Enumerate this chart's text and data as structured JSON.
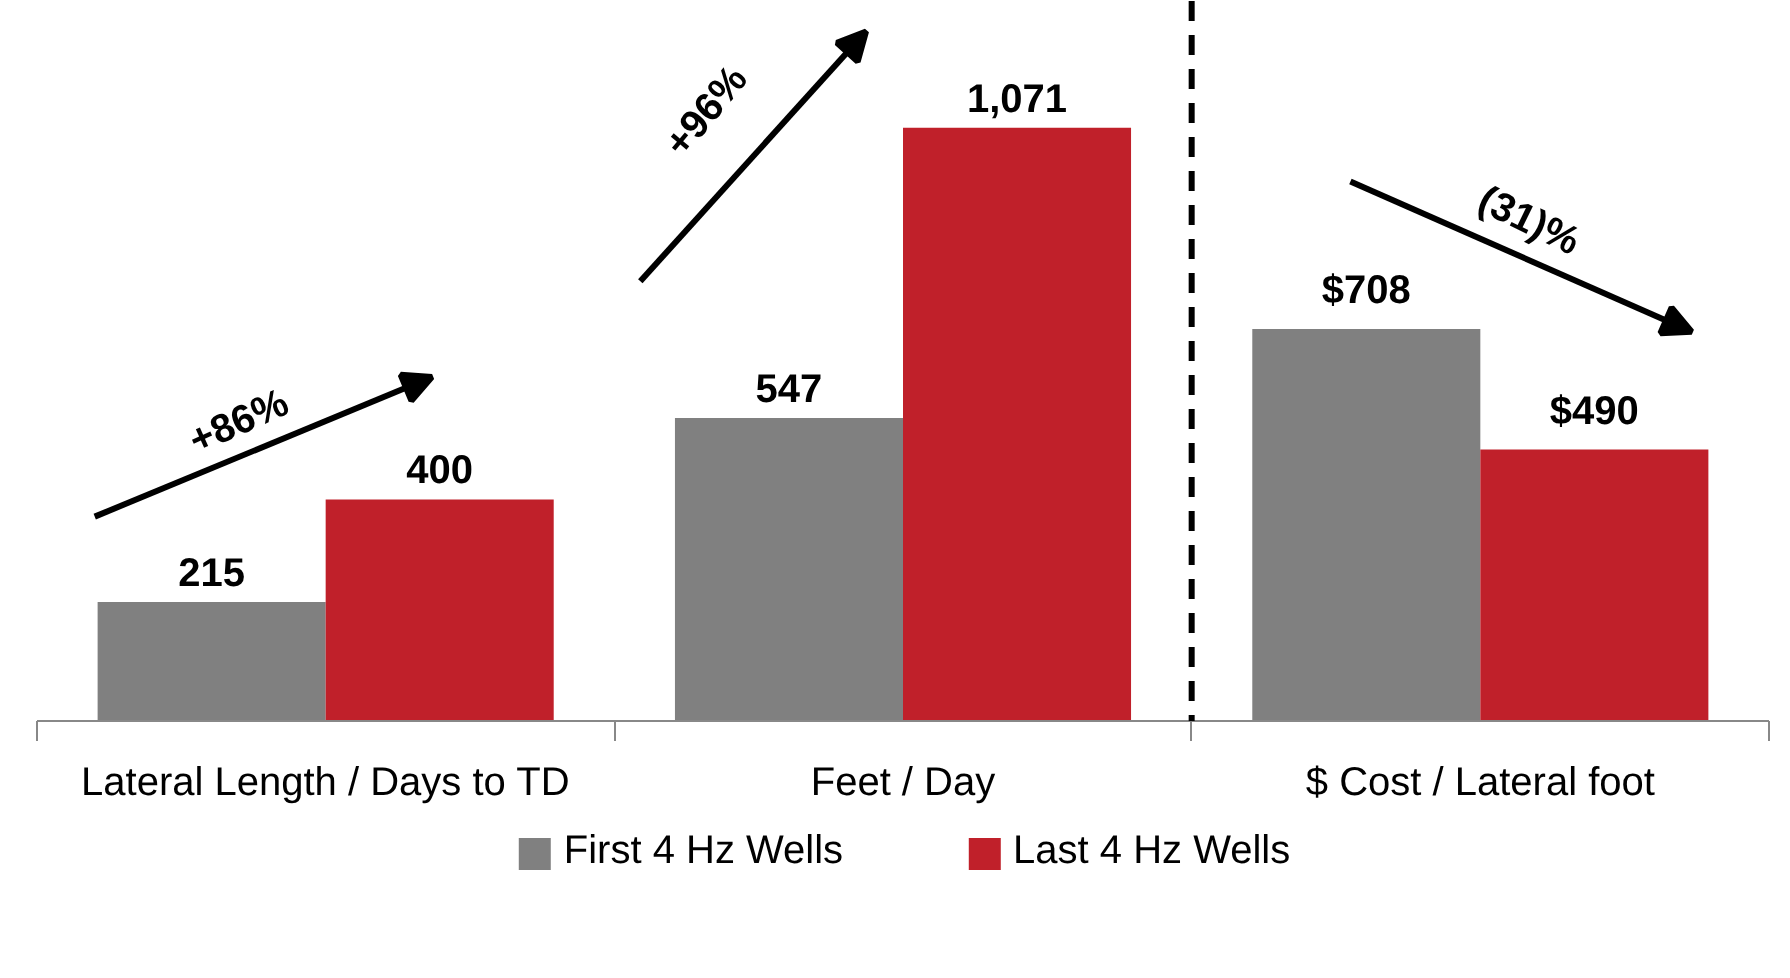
{
  "chart_data": {
    "type": "bar",
    "categories": [
      "Lateral Length / Days to TD",
      "Feet / Day",
      "$ Cost / Lateral foot"
    ],
    "series": [
      {
        "name": "First 4 Hz Wells",
        "color": "#808080",
        "values": [
          215,
          547,
          708
        ],
        "value_labels": [
          "215",
          "547",
          "$708"
        ]
      },
      {
        "name": "Last 4 Hz Wells",
        "color": "#c0202a",
        "values": [
          400,
          1071,
          490
        ],
        "value_labels": [
          "400",
          "1,071",
          "$490"
        ]
      }
    ],
    "ylim": [
      0,
      1300
    ],
    "tick_labels": "x",
    "grid": false,
    "legend": "bottom",
    "annotations": [
      "+86%",
      "+96%",
      "(31)%"
    ]
  }
}
